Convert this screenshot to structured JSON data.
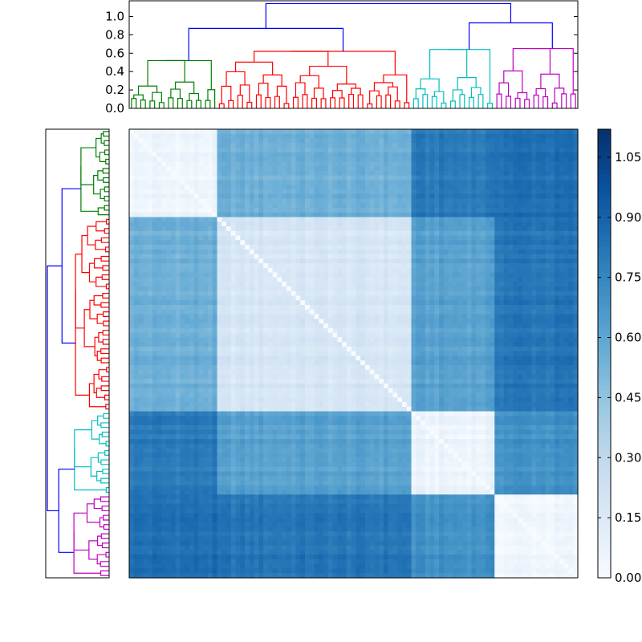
{
  "chart_data": [
    {
      "type": "heatmap",
      "title": "",
      "xlabel": "",
      "ylabel": "",
      "description_values": "clustered distance matrix, leaves ordered by dendrogram",
      "cluster_order": [
        "green",
        "red",
        "cyan",
        "magenta"
      ],
      "cluster_sizes": [
        19,
        42,
        18,
        18
      ],
      "block_distance_matrix": [
        [
          0.05,
          0.55,
          0.8,
          0.85
        ],
        [
          0.55,
          0.18,
          0.62,
          0.82
        ],
        [
          0.8,
          0.62,
          0.06,
          0.7
        ],
        [
          0.85,
          0.82,
          0.7,
          0.04
        ]
      ],
      "colormap": "Blues",
      "vmin": 0.0,
      "vmax": 1.12
    },
    {
      "type": "dendrogram",
      "orientation": "top",
      "ytick_labels": [
        "0.0",
        "0.2",
        "0.4",
        "0.6",
        "0.8",
        "1.0"
      ],
      "ylim": [
        0,
        1.17
      ],
      "link_colors": {
        "green": "#008000",
        "red": "#ff0000",
        "cyan": "#00bfbf",
        "magenta": "#bf00bf",
        "above_threshold": "#0000ff"
      },
      "main_merges": [
        {
          "left": "green",
          "right": "red",
          "height": 0.87
        },
        {
          "left": "cyan",
          "right": "magenta",
          "height": 0.93
        },
        {
          "left": "green+red",
          "right": "cyan+magenta",
          "height": 1.14
        }
      ],
      "cluster_heights": {
        "green": 0.52,
        "red": 0.62,
        "cyan": 0.64,
        "magenta": 0.65
      }
    },
    {
      "type": "dendrogram",
      "orientation": "left"
    },
    {
      "type": "colorbar",
      "tick_labels": [
        "0.00",
        "0.15",
        "0.30",
        "0.45",
        "0.60",
        "0.75",
        "0.90",
        "1.05"
      ],
      "tick_values": [
        0.0,
        0.15,
        0.3,
        0.45,
        0.6,
        0.75,
        0.9,
        1.05
      ],
      "vmin": 0.0,
      "vmax": 1.12
    }
  ]
}
